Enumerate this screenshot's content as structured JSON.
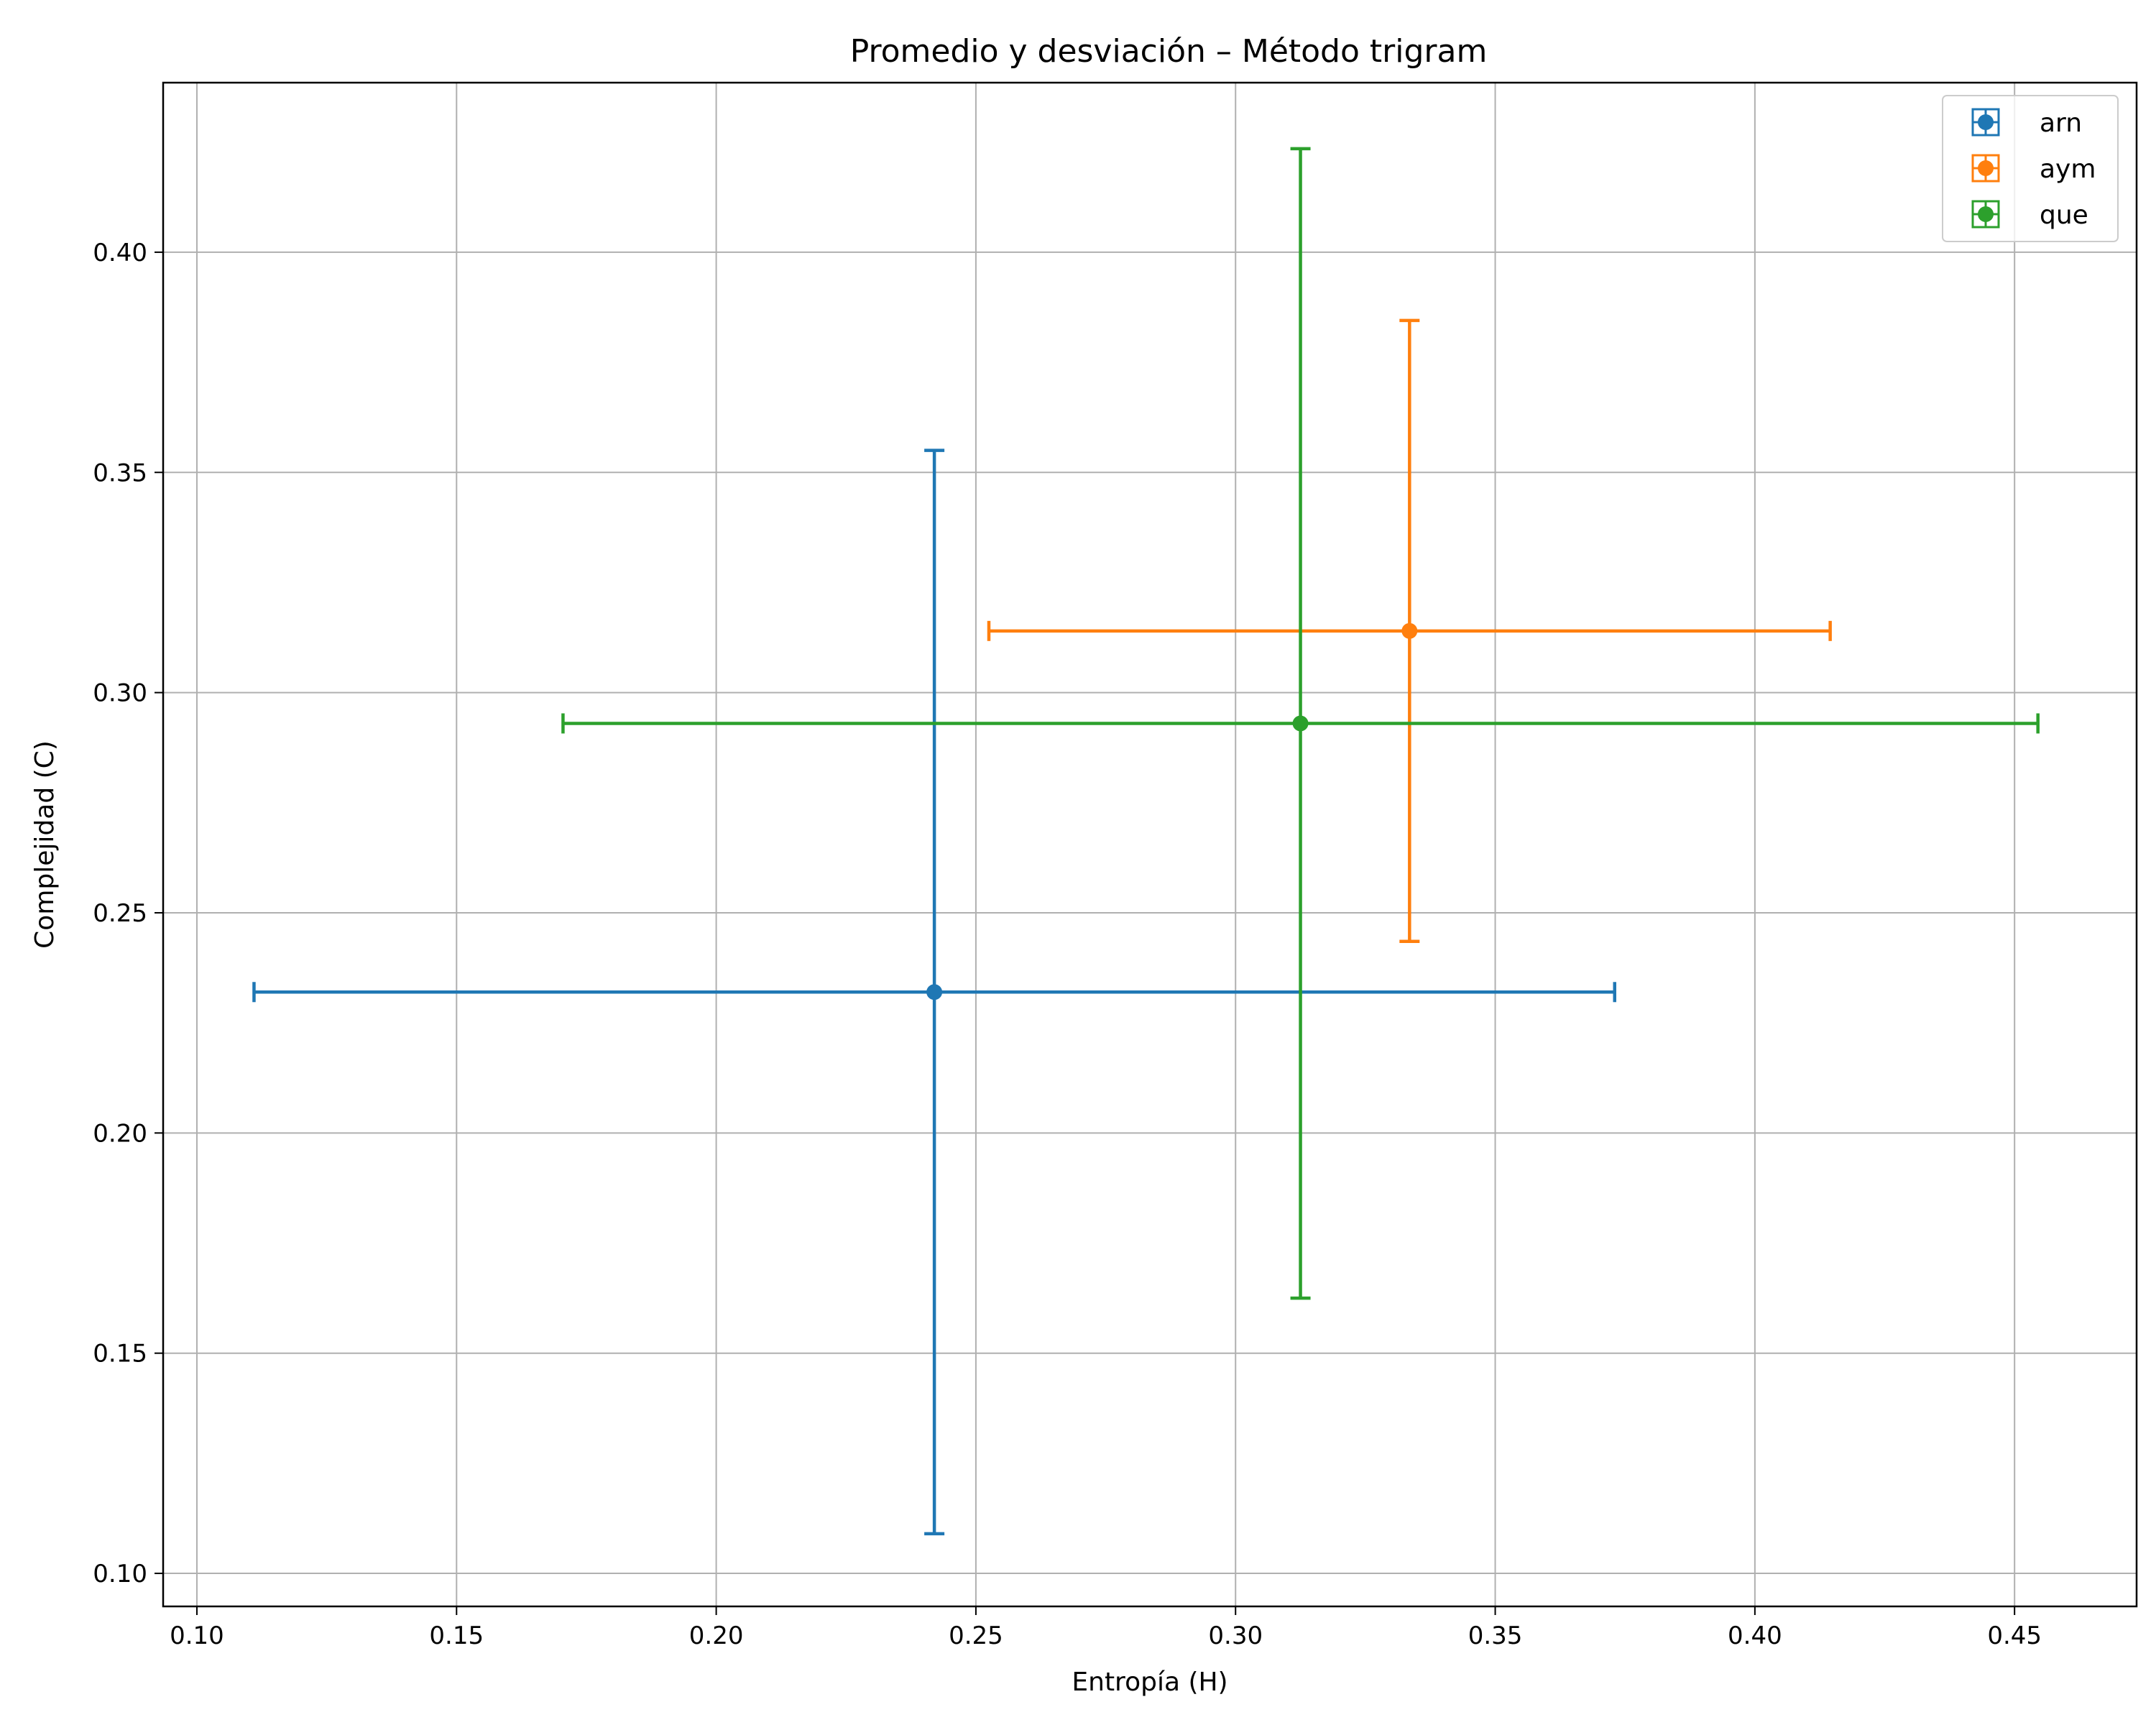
{
  "chart_data": {
    "type": "scatter",
    "title": "Promedio y desviación – Método trigram",
    "xlabel": "Entropía (H)",
    "ylabel": "Complejidad (C)",
    "xlim": [
      0.0935,
      0.4735
    ],
    "ylim": [
      0.0925,
      0.4385
    ],
    "xticks": [
      "0.10",
      "0.15",
      "0.20",
      "0.25",
      "0.30",
      "0.35",
      "0.40",
      "0.45"
    ],
    "yticks": [
      "0.10",
      "0.15",
      "0.20",
      "0.25",
      "0.30",
      "0.35",
      "0.40"
    ],
    "grid": true,
    "legend_position": "top-right",
    "series": [
      {
        "name": "arn",
        "color": "#1f77b4",
        "x": 0.242,
        "y": 0.232,
        "x_err": 0.131,
        "y_err": 0.123
      },
      {
        "name": "aym",
        "color": "#ff7f0e",
        "x": 0.3335,
        "y": 0.314,
        "x_err": 0.081,
        "y_err": 0.0705
      },
      {
        "name": "que",
        "color": "#2ca02c",
        "x": 0.3125,
        "y": 0.293,
        "x_err": 0.142,
        "y_err": 0.1305
      }
    ]
  }
}
